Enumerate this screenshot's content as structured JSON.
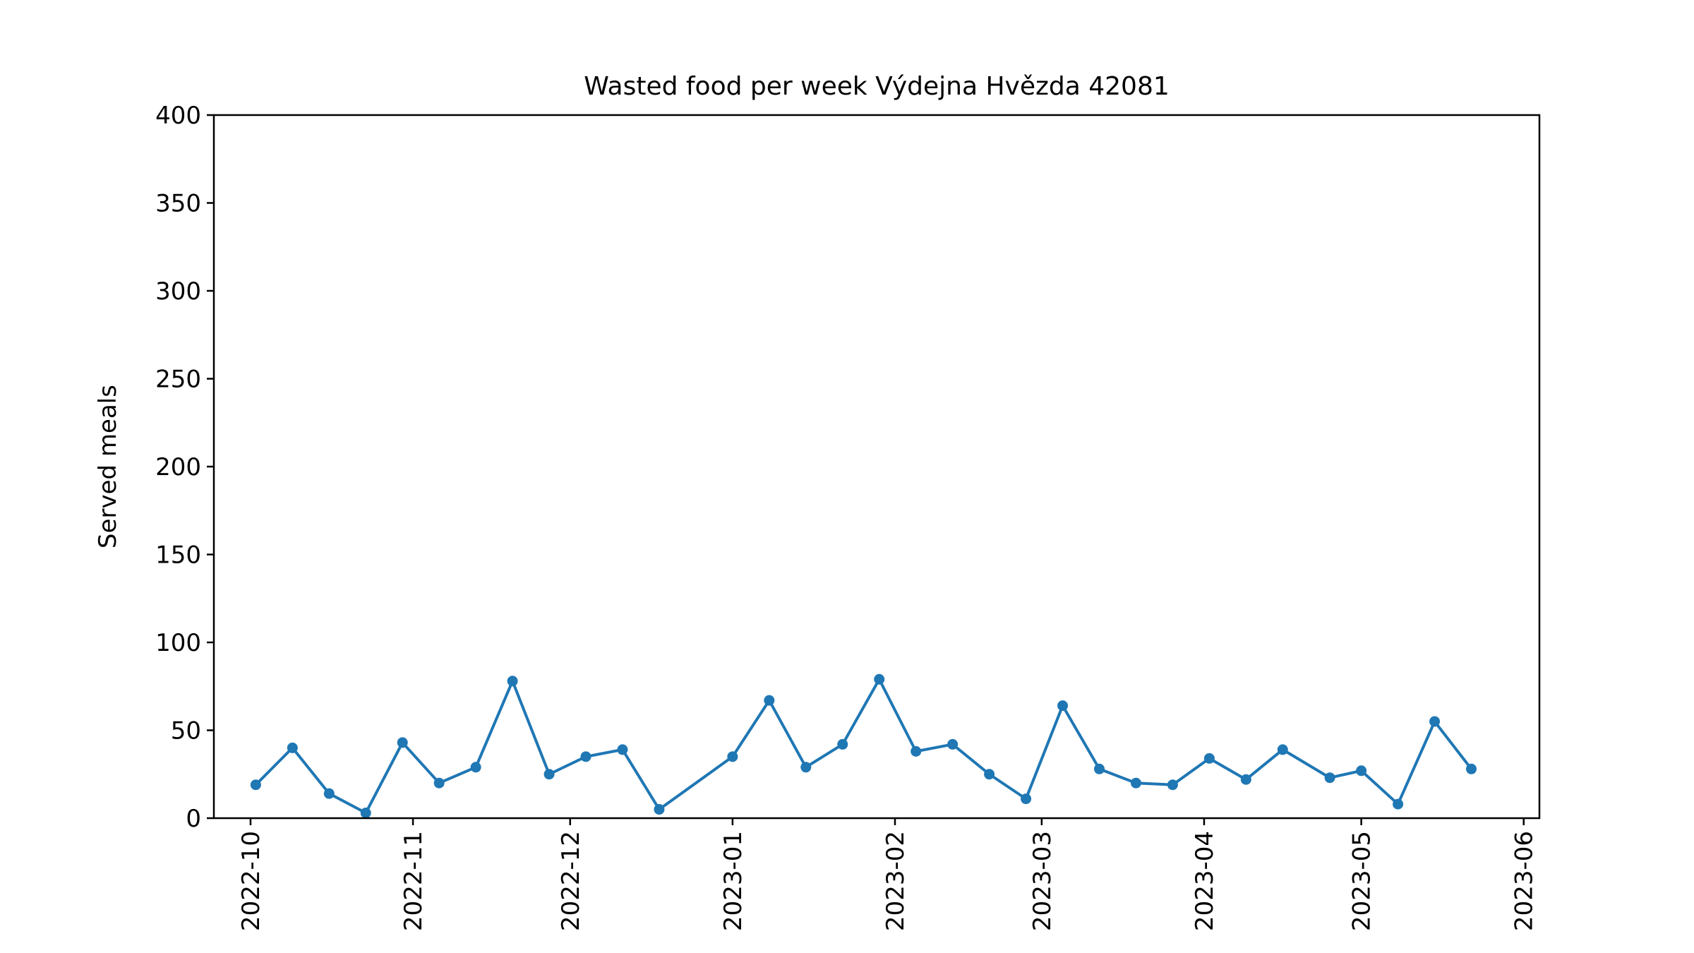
{
  "chart_data": {
    "type": "line",
    "title": "Wasted food per week Výdejna Hvězda 42081",
    "xlabel": "",
    "ylabel": "Served meals",
    "ylim": [
      0,
      400
    ],
    "xlim": [
      "2022-09-24",
      "2023-06-04"
    ],
    "yticks": [
      0,
      50,
      100,
      150,
      200,
      250,
      300,
      350,
      400
    ],
    "xticks": [
      "2022-10-01",
      "2022-11-01",
      "2022-12-01",
      "2023-01-01",
      "2023-02-01",
      "2023-03-01",
      "2023-04-01",
      "2023-05-01",
      "2023-06-01"
    ],
    "xtick_labels": [
      "2022-10",
      "2022-11",
      "2022-12",
      "2023-01",
      "2023-02",
      "2023-03",
      "2023-04",
      "2023-05",
      "2023-06"
    ],
    "grid": false,
    "color": "#1f77b4",
    "series": [
      {
        "x": [
          "2022-10-02",
          "2022-10-09",
          "2022-10-16",
          "2022-10-23",
          "2022-10-30",
          "2022-11-06",
          "2022-11-13",
          "2022-11-20",
          "2022-11-27",
          "2022-12-04",
          "2022-12-11",
          "2022-12-18",
          "2023-01-01",
          "2023-01-08",
          "2023-01-15",
          "2023-01-22",
          "2023-01-29",
          "2023-02-05",
          "2023-02-12",
          "2023-02-19",
          "2023-02-26",
          "2023-03-05",
          "2023-03-12",
          "2023-03-19",
          "2023-03-26",
          "2023-04-02",
          "2023-04-09",
          "2023-04-16",
          "2023-04-25",
          "2023-05-01",
          "2023-05-08",
          "2023-05-15",
          "2023-05-22"
        ],
        "y": [
          19,
          40,
          14,
          3,
          43,
          20,
          29,
          78,
          25,
          35,
          39,
          5,
          35,
          67,
          29,
          42,
          79,
          38,
          42,
          25,
          11,
          64,
          28,
          20,
          19,
          34,
          22,
          39,
          23,
          27,
          8,
          55,
          28
        ]
      }
    ]
  }
}
